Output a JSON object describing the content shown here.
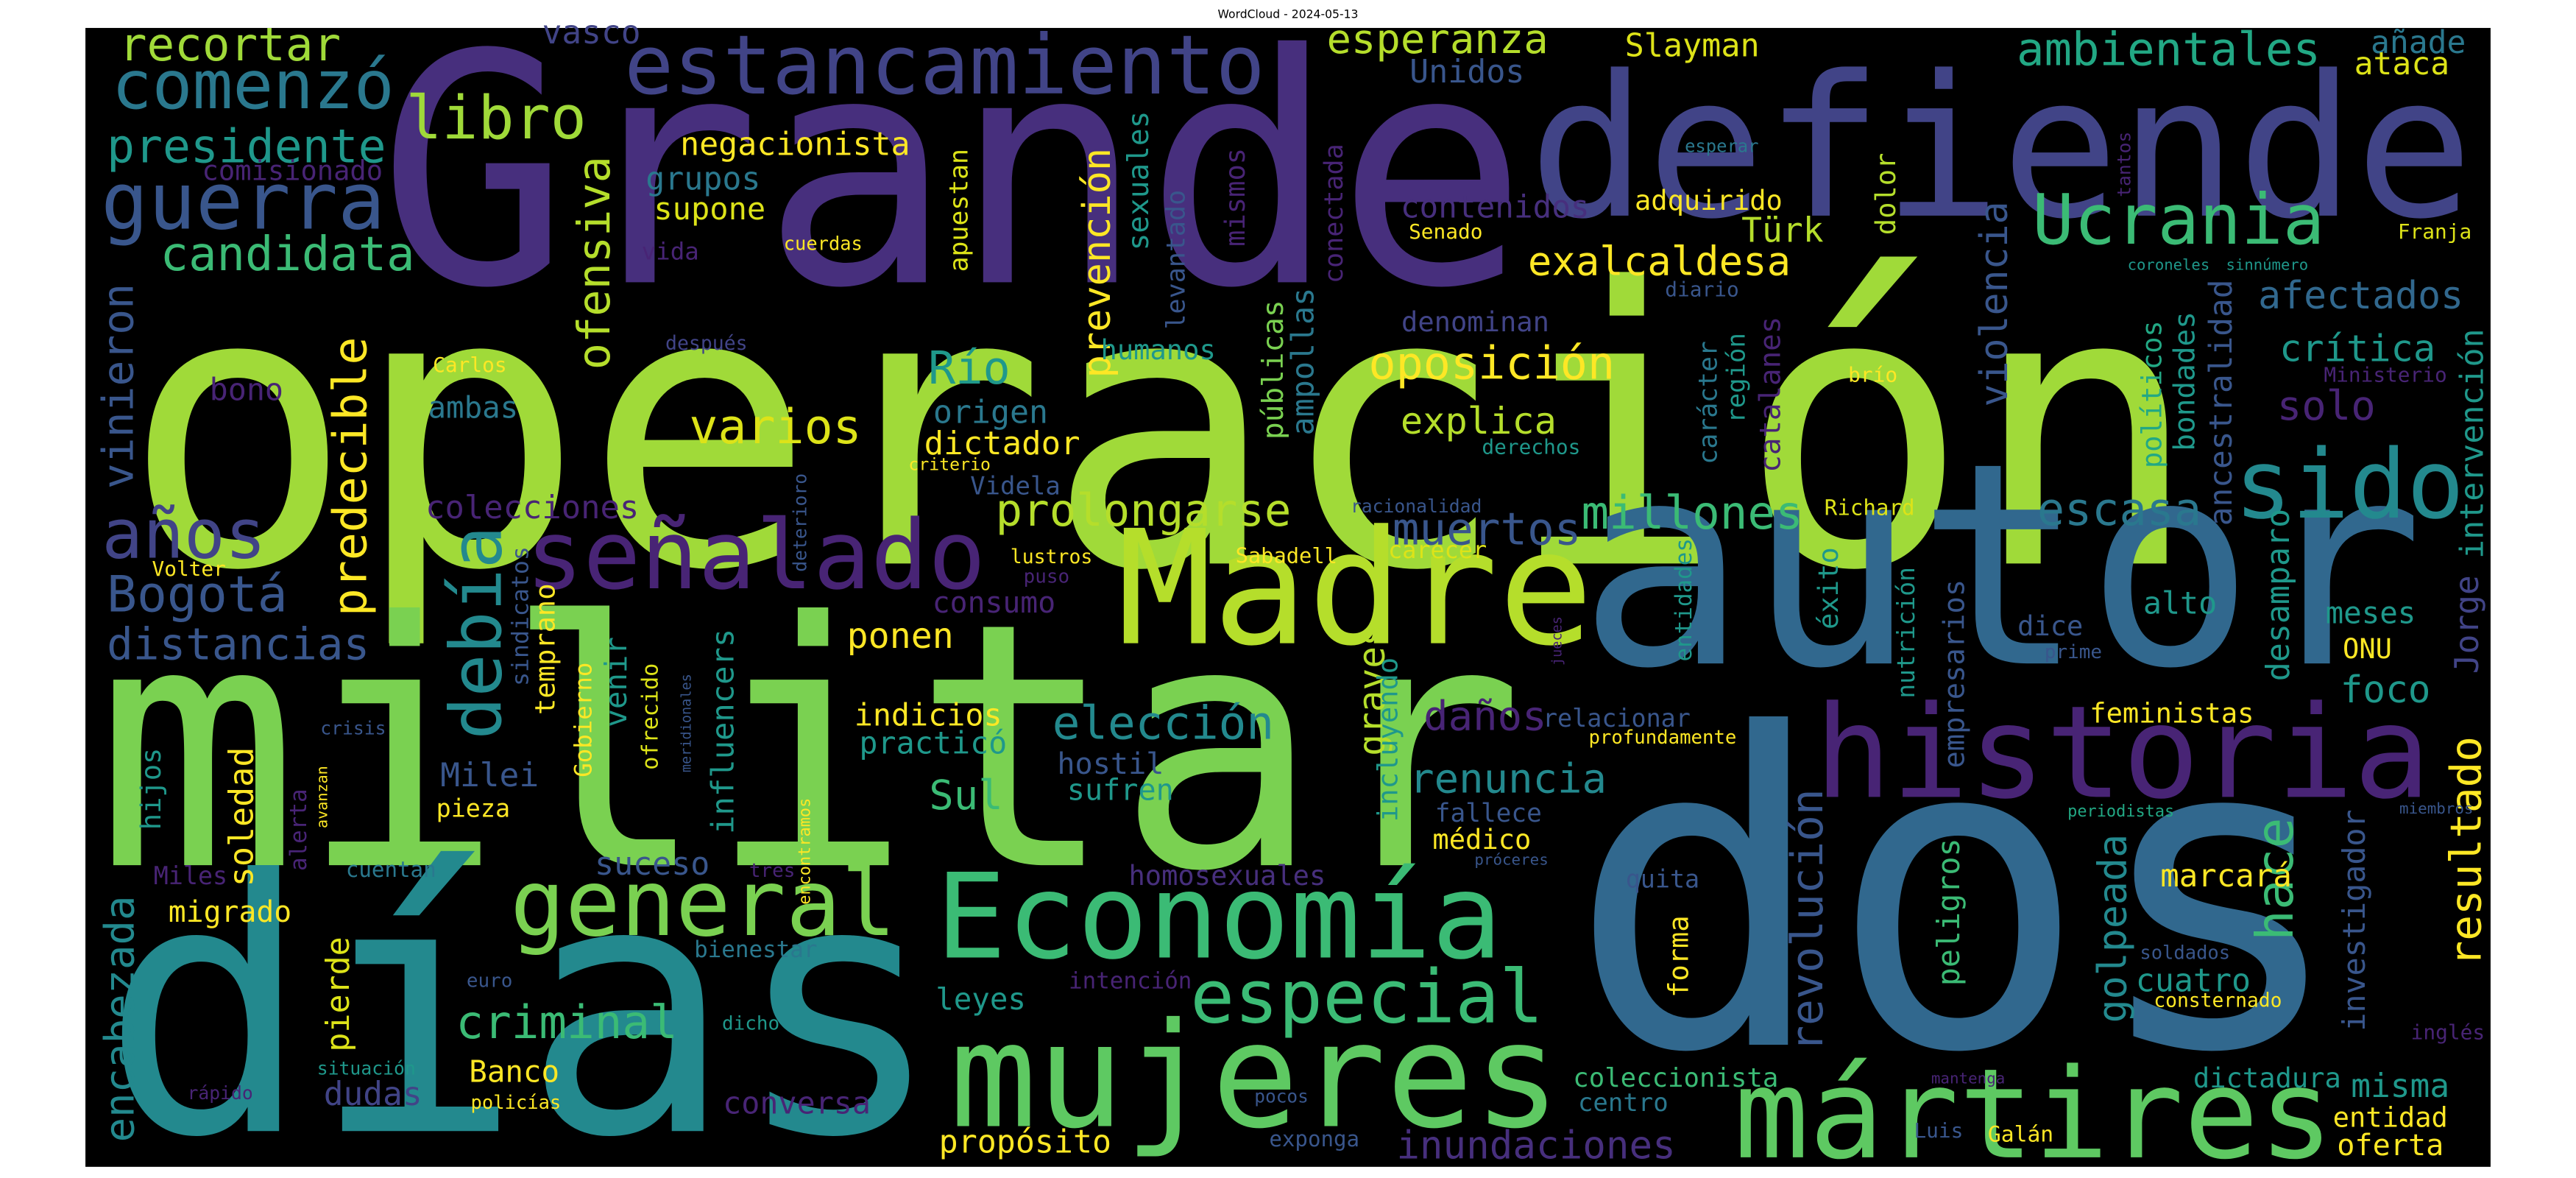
{
  "title": "WordCloud - 2024-05-13",
  "words": [
    {
      "text": "operación",
      "color": "#a0da39"
    },
    {
      "text": "militar",
      "color": "#7ad151"
    },
    {
      "text": "dos",
      "color": "#31688e"
    },
    {
      "text": "días",
      "color": "#23898e"
    },
    {
      "text": "Grande",
      "color": "#472f7d"
    },
    {
      "text": "defiende",
      "color": "#414487"
    },
    {
      "text": "autor",
      "color": "#31688e"
    },
    {
      "text": "Madre",
      "color": "#b5de2b"
    },
    {
      "text": "historia",
      "color": "#482475"
    },
    {
      "text": "Economía",
      "color": "#3bbb75"
    },
    {
      "text": "mujeres",
      "color": "#5ec962"
    },
    {
      "text": "mártires",
      "color": "#5ec962"
    },
    {
      "text": "general",
      "color": "#7ad151"
    },
    {
      "text": "señalado",
      "color": "#482475"
    },
    {
      "text": "estancamiento",
      "color": "#414487"
    },
    {
      "text": "comenzó",
      "color": "#2a788e"
    },
    {
      "text": "guerra",
      "color": "#39568c"
    },
    {
      "text": "presidente",
      "color": "#1f988b"
    },
    {
      "text": "recortar",
      "color": "#a0da39"
    },
    {
      "text": "vasco",
      "color": "#414487"
    },
    {
      "text": "esperanza",
      "color": "#b5de2b"
    },
    {
      "text": "Slayman",
      "color": "#dde318"
    },
    {
      "text": "Unidos",
      "color": "#39568c"
    },
    {
      "text": "ambientales",
      "color": "#22a884"
    },
    {
      "text": "añade",
      "color": "#2a788e"
    },
    {
      "text": "ataca",
      "color": "#dde318"
    },
    {
      "text": "libro",
      "color": "#a0da39"
    },
    {
      "text": "candidata",
      "color": "#3bbb75"
    },
    {
      "text": "negacionista",
      "color": "#fde725"
    },
    {
      "text": "grupos",
      "color": "#2a788e"
    },
    {
      "text": "supone",
      "color": "#dde318"
    },
    {
      "text": "comisionado",
      "color": "#482475"
    },
    {
      "text": "Ucrania",
      "color": "#3bbb75"
    },
    {
      "text": "exalcaldesa",
      "color": "#fde725"
    },
    {
      "text": "adquirido",
      "color": "#fde725"
    },
    {
      "text": "contenidos",
      "color": "#472f7d"
    },
    {
      "text": "Türk",
      "color": "#b5de2b"
    },
    {
      "text": "Senado",
      "color": "#fde725"
    },
    {
      "text": "Franja",
      "color": "#dde318"
    },
    {
      "text": "tantos",
      "color": "#482475"
    },
    {
      "text": "esperar",
      "color": "#2a788e"
    },
    {
      "text": "dolor",
      "color": "#b5de2b"
    },
    {
      "text": "ofensiva",
      "color": "#b5de2b"
    },
    {
      "text": "vinieron",
      "color": "#39568c"
    },
    {
      "text": "vida",
      "color": "#482475"
    },
    {
      "text": "cuerdas",
      "color": "#fde725"
    },
    {
      "text": "apuestan",
      "color": "#dde318"
    },
    {
      "text": "prevención",
      "color": "#fde725"
    },
    {
      "text": "sexuales",
      "color": "#1f988b"
    },
    {
      "text": "mismos",
      "color": "#482475"
    },
    {
      "text": "levantado",
      "color": "#39568c"
    },
    {
      "text": "conectada",
      "color": "#482475"
    },
    {
      "text": "públicas",
      "color": "#7ad151"
    },
    {
      "text": "ampollas",
      "color": "#2a788e"
    },
    {
      "text": "oposición",
      "color": "#fde725"
    },
    {
      "text": "denominan",
      "color": "#414487"
    },
    {
      "text": "explica",
      "color": "#b5de2b"
    },
    {
      "text": "diario",
      "color": "#39568c"
    },
    {
      "text": "carácter",
      "color": "#2a788e"
    },
    {
      "text": "región",
      "color": "#1f988b"
    },
    {
      "text": "catalanes",
      "color": "#482475"
    },
    {
      "text": "violencia",
      "color": "#39568c"
    },
    {
      "text": "afectados",
      "color": "#31688e"
    },
    {
      "text": "crítica",
      "color": "#1f988b"
    },
    {
      "text": "Ministerio",
      "color": "#482475"
    },
    {
      "text": "solo",
      "color": "#482475"
    },
    {
      "text": "intervención",
      "color": "#1f988b"
    },
    {
      "text": "ancestralidad",
      "color": "#39568c"
    },
    {
      "text": "bondades",
      "color": "#1f988b"
    },
    {
      "text": "políticos",
      "color": "#22a884"
    },
    {
      "text": "brío",
      "color": "#fde725"
    },
    {
      "text": "sido",
      "color": "#23898e"
    },
    {
      "text": "escasa",
      "color": "#2a788e"
    },
    {
      "text": "Richard",
      "color": "#dde318"
    },
    {
      "text": "éxito",
      "color": "#1f988b"
    },
    {
      "text": "Jorge",
      "color": "#414487"
    },
    {
      "text": "desamparo",
      "color": "#1f988b"
    },
    {
      "text": "meses",
      "color": "#1f988b"
    },
    {
      "text": "alto",
      "color": "#1f988b"
    },
    {
      "text": "prime",
      "color": "#39568c"
    },
    {
      "text": "ONU",
      "color": "#fde725"
    },
    {
      "text": "foco",
      "color": "#1f988b"
    },
    {
      "text": "dice",
      "color": "#39568c"
    },
    {
      "text": "nutrición",
      "color": "#1f988b"
    },
    {
      "text": "empresarios",
      "color": "#39568c"
    },
    {
      "text": "entidades",
      "color": "#1f988b"
    },
    {
      "text": "carecer",
      "color": "#dde318"
    },
    {
      "text": "racionalidad",
      "color": "#39568c"
    },
    {
      "text": "Sabadell",
      "color": "#fde725"
    },
    {
      "text": "millones",
      "color": "#3bbb75"
    },
    {
      "text": "muertos",
      "color": "#39568c"
    },
    {
      "text": "prolongarse",
      "color": "#b5de2b"
    },
    {
      "text": "Videla",
      "color": "#39568c"
    },
    {
      "text": "Río",
      "color": "#1f988b"
    },
    {
      "text": "origen",
      "color": "#2a788e"
    },
    {
      "text": "dictador",
      "color": "#fde725"
    },
    {
      "text": "varios",
      "color": "#dde318"
    },
    {
      "text": "criterio",
      "color": "#fde725"
    },
    {
      "text": "humanos",
      "color": "#1f988b"
    },
    {
      "text": "derechos",
      "color": "#1f988b"
    },
    {
      "text": "predecible",
      "color": "#fde725"
    },
    {
      "text": "debía",
      "color": "#23898e"
    },
    {
      "text": "años",
      "color": "#414487"
    },
    {
      "text": "Bogotá",
      "color": "#39568c"
    },
    {
      "text": "distancias",
      "color": "#39568c"
    },
    {
      "text": "Volter",
      "color": "#fde725"
    },
    {
      "text": "colecciones",
      "color": "#482475"
    },
    {
      "text": "bono",
      "color": "#482475"
    },
    {
      "text": "Carlos",
      "color": "#fde725"
    },
    {
      "text": "ambas",
      "color": "#2a788e"
    },
    {
      "text": "después",
      "color": "#414487"
    },
    {
      "text": "sindicatos",
      "color": "#39568c"
    },
    {
      "text": "temprano",
      "color": "#fde725"
    },
    {
      "text": "venir",
      "color": "#1f988b"
    },
    {
      "text": "Gobierno",
      "color": "#fde725"
    },
    {
      "text": "ofrecido",
      "color": "#dde318"
    },
    {
      "text": "meridionales",
      "color": "#39568c"
    },
    {
      "text": "influencers",
      "color": "#1f988b"
    },
    {
      "text": "deterioro",
      "color": "#39568c"
    },
    {
      "text": "consumo",
      "color": "#482475"
    },
    {
      "text": "lustros",
      "color": "#fde725"
    },
    {
      "text": "puso",
      "color": "#482475"
    },
    {
      "text": "ponen",
      "color": "#fde725"
    },
    {
      "text": "indicios",
      "color": "#fde725"
    },
    {
      "text": "practicó",
      "color": "#1f988b"
    },
    {
      "text": "elección",
      "color": "#23898e"
    },
    {
      "text": "encontramos",
      "color": "#fde725"
    },
    {
      "text": "Sul",
      "color": "#3bbb75"
    },
    {
      "text": "hostil",
      "color": "#39568c"
    },
    {
      "text": "sufren",
      "color": "#1f988b"
    },
    {
      "text": "Milei",
      "color": "#39568c"
    },
    {
      "text": "pieza",
      "color": "#fde725"
    },
    {
      "text": "hijos",
      "color": "#1f988b"
    },
    {
      "text": "soledad",
      "color": "#fde725"
    },
    {
      "text": "alerta",
      "color": "#482475"
    },
    {
      "text": "crisis",
      "color": "#39568c"
    },
    {
      "text": "avanzan",
      "color": "#fde725"
    },
    {
      "text": "Miles",
      "color": "#482475"
    },
    {
      "text": "cuentan",
      "color": "#2a788e"
    },
    {
      "text": "suceso",
      "color": "#39568c"
    },
    {
      "text": "tres",
      "color": "#482475"
    },
    {
      "text": "encabezada",
      "color": "#23898e"
    },
    {
      "text": "pierde",
      "color": "#dde318"
    },
    {
      "text": "migrado",
      "color": "#fde725"
    },
    {
      "text": "criminal",
      "color": "#3bbb75"
    },
    {
      "text": "bienestar",
      "color": "#2a788e"
    },
    {
      "text": "euro",
      "color": "#39568c"
    },
    {
      "text": "dicho",
      "color": "#1f988b"
    },
    {
      "text": "Banco",
      "color": "#fde725"
    },
    {
      "text": "dudas",
      "color": "#414487"
    },
    {
      "text": "situación",
      "color": "#1f988b"
    },
    {
      "text": "policías",
      "color": "#fde725"
    },
    {
      "text": "rápido",
      "color": "#482475"
    },
    {
      "text": "conversa",
      "color": "#482475"
    },
    {
      "text": "leyes",
      "color": "#1f988b"
    },
    {
      "text": "intención",
      "color": "#482475"
    },
    {
      "text": "especial",
      "color": "#3bbb75"
    },
    {
      "text": "propósito",
      "color": "#fde725"
    },
    {
      "text": "exponga",
      "color": "#39568c"
    },
    {
      "text": "pocos",
      "color": "#39568c"
    },
    {
      "text": "homosexuales",
      "color": "#472f7d"
    },
    {
      "text": "graves",
      "color": "#b5de2b"
    },
    {
      "text": "incluyendo",
      "color": "#1f988b"
    },
    {
      "text": "daños",
      "color": "#482475"
    },
    {
      "text": "relacionar",
      "color": "#39568c"
    },
    {
      "text": "renuncia",
      "color": "#23898e"
    },
    {
      "text": "fallece",
      "color": "#39568c"
    },
    {
      "text": "médico",
      "color": "#fde725"
    },
    {
      "text": "profundamente",
      "color": "#fde725"
    },
    {
      "text": "jueces",
      "color": "#482475"
    },
    {
      "text": "quita",
      "color": "#39568c"
    },
    {
      "text": "forma",
      "color": "#fde725"
    },
    {
      "text": "próceres",
      "color": "#39568c"
    },
    {
      "text": "revolución",
      "color": "#39568c"
    },
    {
      "text": "peligros",
      "color": "#3bbb75"
    },
    {
      "text": "coleccionista",
      "color": "#3bbb75"
    },
    {
      "text": "centro",
      "color": "#2a788e"
    },
    {
      "text": "inundaciones",
      "color": "#472f7d"
    },
    {
      "text": "Luis",
      "color": "#39568c"
    },
    {
      "text": "Galán",
      "color": "#fde725"
    },
    {
      "text": "mantenga",
      "color": "#482475"
    },
    {
      "text": "golpeada",
      "color": "#23898e"
    },
    {
      "text": "hace",
      "color": "#3bbb75"
    },
    {
      "text": "resultado",
      "color": "#fde725"
    },
    {
      "text": "investigador",
      "color": "#39568c"
    },
    {
      "text": "marcará",
      "color": "#fde725"
    },
    {
      "text": "cuatro",
      "color": "#1f988b"
    },
    {
      "text": "consternado",
      "color": "#fde725"
    },
    {
      "text": "soldados",
      "color": "#39568c"
    },
    {
      "text": "periodistas",
      "color": "#22a884"
    },
    {
      "text": "miembros",
      "color": "#39568c"
    },
    {
      "text": "feministas",
      "color": "#fde725"
    },
    {
      "text": "inglés",
      "color": "#482475"
    },
    {
      "text": "dictadura",
      "color": "#1f988b"
    },
    {
      "text": "misma",
      "color": "#1f988b"
    },
    {
      "text": "entidad",
      "color": "#fde725"
    },
    {
      "text": "oferta",
      "color": "#fde725"
    },
    {
      "text": "sinnúmero",
      "color": "#1f988b"
    },
    {
      "text": "coroneles",
      "color": "#1f988b"
    }
  ]
}
